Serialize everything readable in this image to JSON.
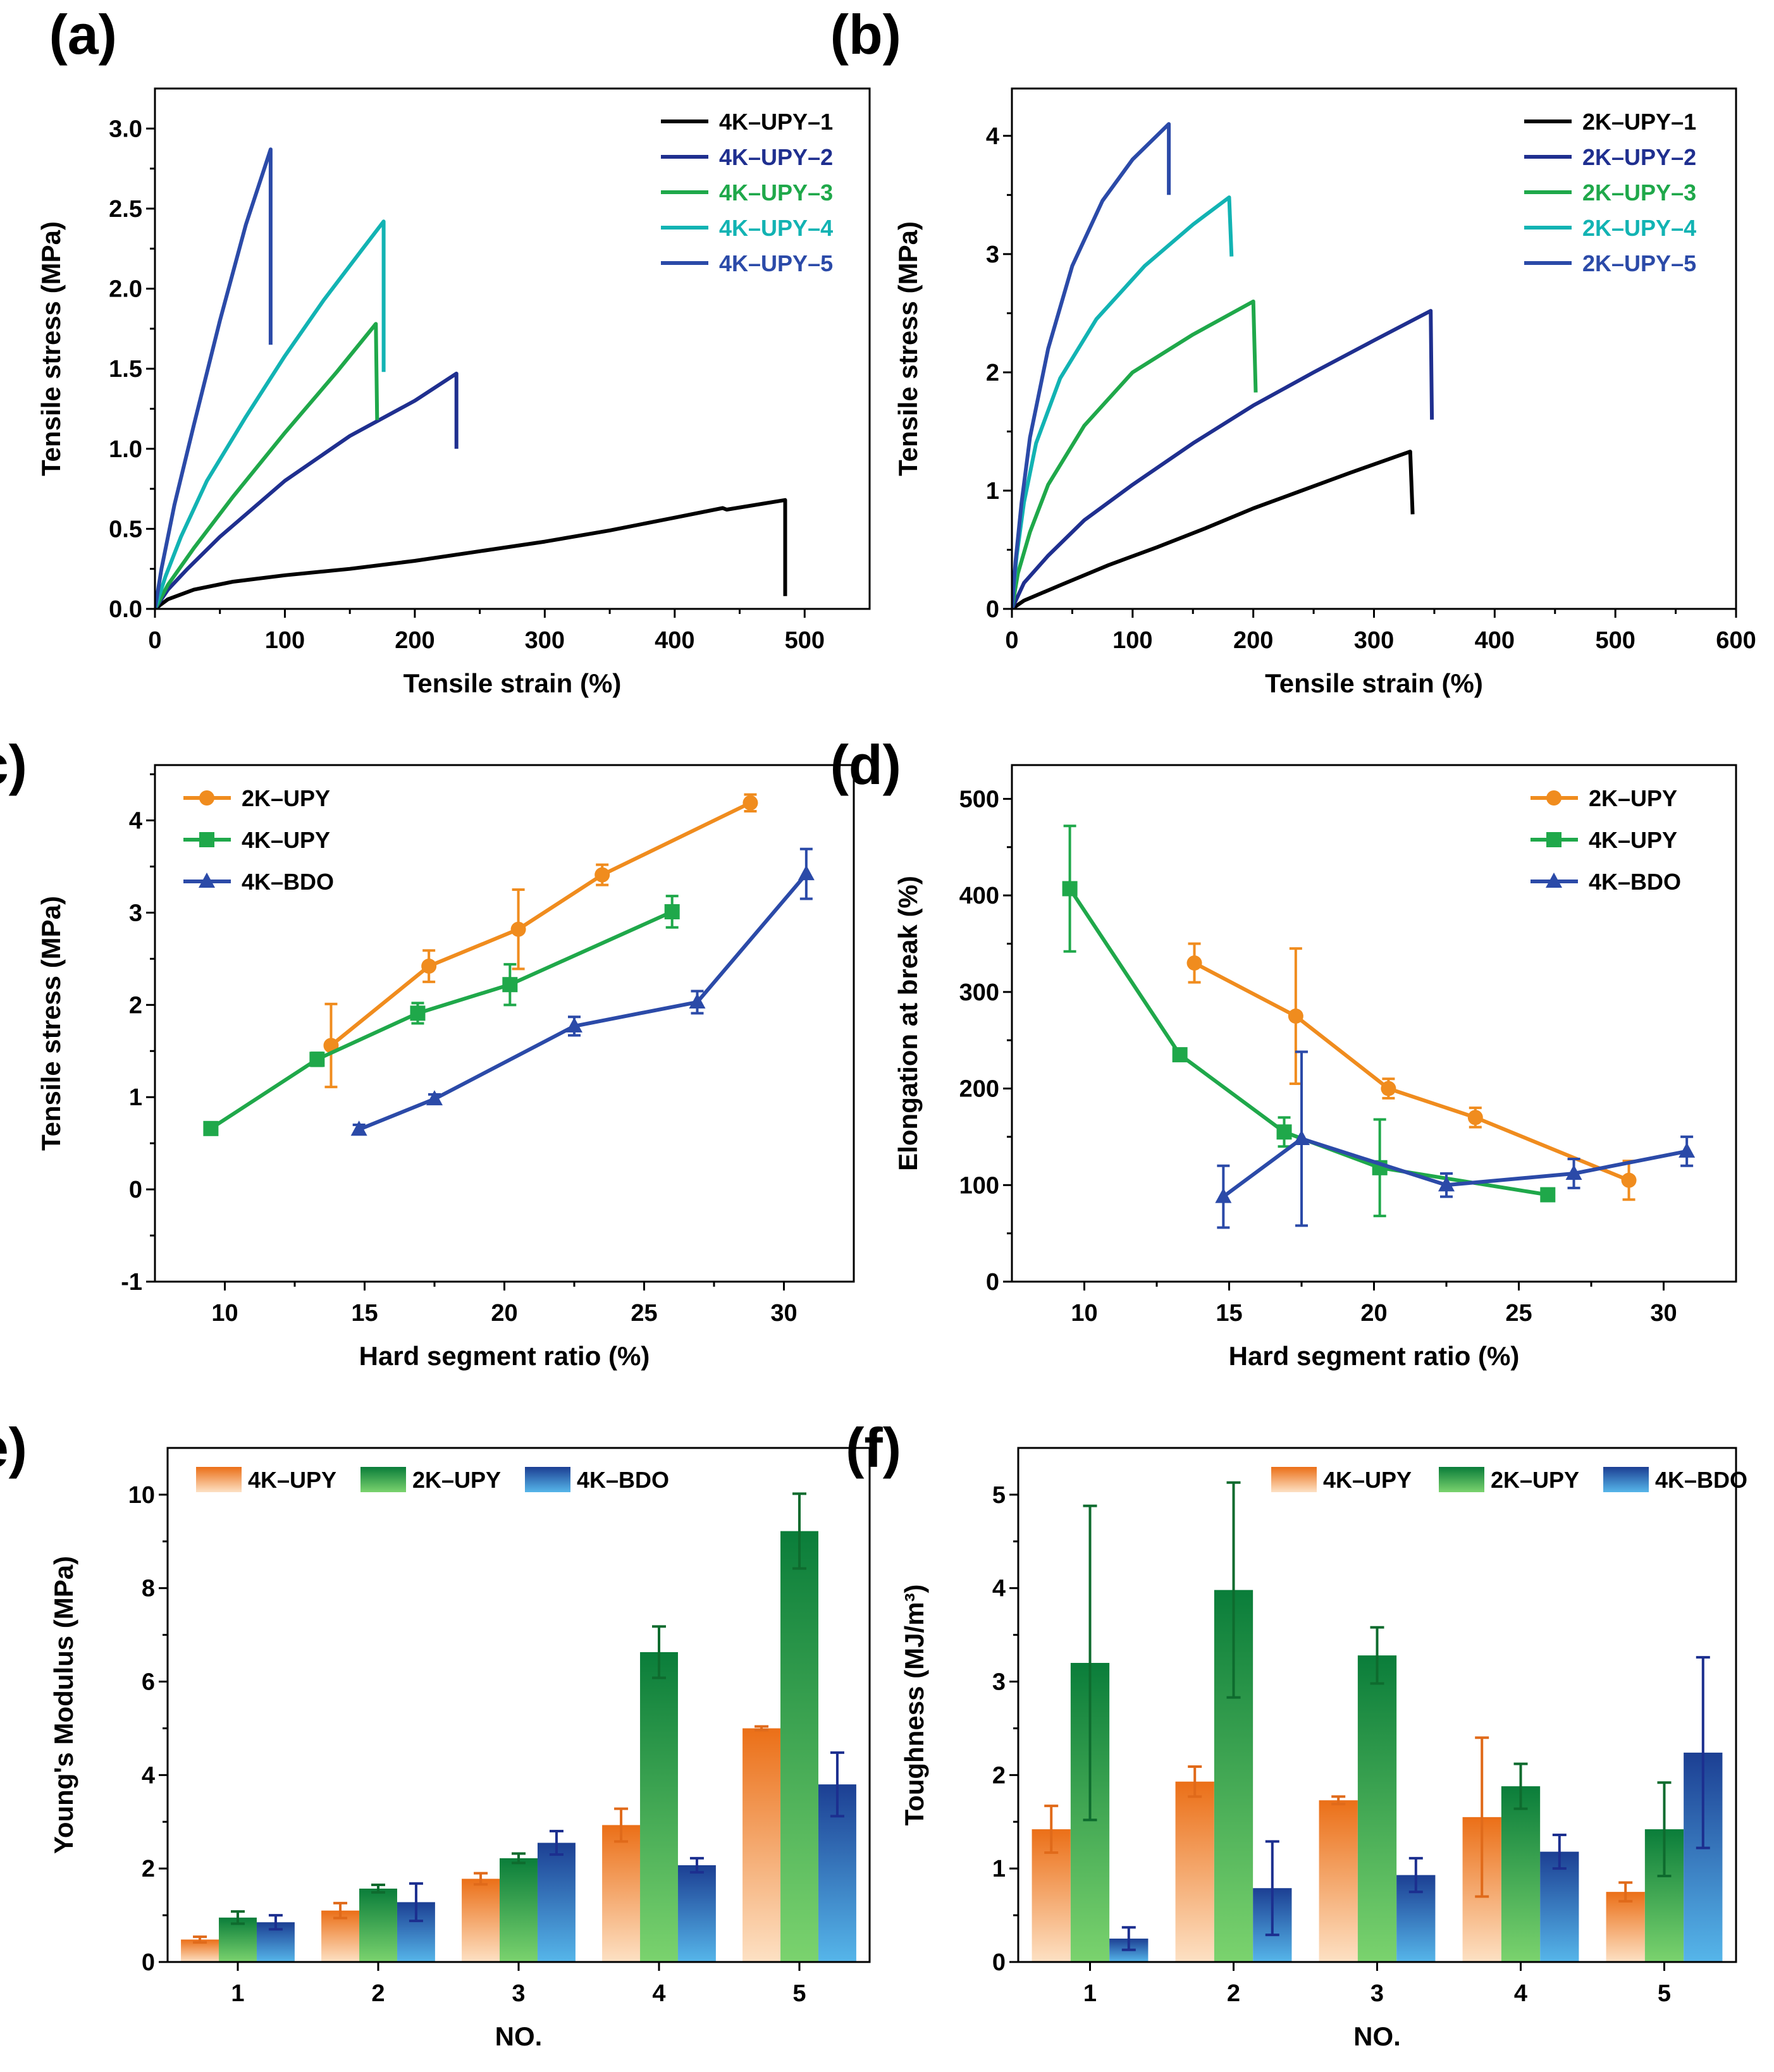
{
  "chart_data": [
    {
      "id": "a",
      "panel_label": "(a)",
      "type": "line",
      "xlabel": "Tensile strain (%)",
      "ylabel": "Tensile stress (MPa)",
      "xlim": [
        0,
        550
      ],
      "ylim": [
        0,
        3.25
      ],
      "xticks": [
        0,
        100,
        200,
        300,
        400,
        500
      ],
      "yticks": [
        0.0,
        0.5,
        1.0,
        1.5,
        2.0,
        2.5,
        3.0
      ],
      "ytick_labels": [
        "0.0",
        "0.5",
        "1.0",
        "1.5",
        "2.0",
        "2.5",
        "3.0"
      ],
      "legend": "top-right",
      "series": [
        {
          "name": "4K–UPY–1",
          "color": "#000000",
          "points": [
            [
              0,
              0
            ],
            [
              10,
              0.06
            ],
            [
              30,
              0.12
            ],
            [
              60,
              0.17
            ],
            [
              100,
              0.21
            ],
            [
              150,
              0.25
            ],
            [
              200,
              0.3
            ],
            [
              250,
              0.36
            ],
            [
              300,
              0.42
            ],
            [
              350,
              0.49
            ],
            [
              400,
              0.57
            ],
            [
              437,
              0.63
            ],
            [
              440,
              0.62
            ],
            [
              485,
              0.68
            ],
            [
              485,
              0.08
            ]
          ]
        },
        {
          "name": "4K–UPY–2",
          "color": "#1f2f8f",
          "points": [
            [
              0,
              0
            ],
            [
              10,
              0.12
            ],
            [
              25,
              0.25
            ],
            [
              50,
              0.45
            ],
            [
              100,
              0.8
            ],
            [
              150,
              1.08
            ],
            [
              200,
              1.3
            ],
            [
              232,
              1.47
            ],
            [
              232,
              1.0
            ]
          ]
        },
        {
          "name": "4K–UPY–3",
          "color": "#1fa84a",
          "points": [
            [
              0,
              0
            ],
            [
              10,
              0.15
            ],
            [
              30,
              0.38
            ],
            [
              60,
              0.7
            ],
            [
              100,
              1.1
            ],
            [
              140,
              1.48
            ],
            [
              170,
              1.78
            ],
            [
              171,
              1.18
            ]
          ]
        },
        {
          "name": "4K–UPY–4",
          "color": "#12b3b3",
          "points": [
            [
              0,
              0
            ],
            [
              8,
              0.2
            ],
            [
              20,
              0.45
            ],
            [
              40,
              0.8
            ],
            [
              70,
              1.2
            ],
            [
              100,
              1.58
            ],
            [
              130,
              1.93
            ],
            [
              160,
              2.25
            ],
            [
              176,
              2.42
            ],
            [
              176,
              1.48
            ]
          ]
        },
        {
          "name": "4K–UPY–5",
          "color": "#2b4aa8",
          "points": [
            [
              0,
              0
            ],
            [
              5,
              0.25
            ],
            [
              15,
              0.65
            ],
            [
              30,
              1.15
            ],
            [
              50,
              1.8
            ],
            [
              70,
              2.4
            ],
            [
              89,
              2.87
            ],
            [
              89,
              1.65
            ]
          ]
        }
      ]
    },
    {
      "id": "b",
      "panel_label": "(b)",
      "type": "line",
      "xlabel": "Tensile strain (%)",
      "ylabel": "Tensile stress (MPa)",
      "xlim": [
        0,
        600
      ],
      "ylim": [
        0,
        4.4
      ],
      "xticks": [
        0,
        100,
        200,
        300,
        400,
        500,
        600
      ],
      "yticks": [
        0,
        1,
        2,
        3,
        4
      ],
      "ytick_labels": [
        "0",
        "1",
        "2",
        "3",
        "4"
      ],
      "legend": "top-right",
      "series": [
        {
          "name": "2K–UPY–1",
          "color": "#000000",
          "points": [
            [
              0,
              0
            ],
            [
              10,
              0.07
            ],
            [
              40,
              0.2
            ],
            [
              80,
              0.37
            ],
            [
              120,
              0.52
            ],
            [
              160,
              0.68
            ],
            [
              200,
              0.85
            ],
            [
              240,
              1.0
            ],
            [
              280,
              1.15
            ],
            [
              330,
              1.33
            ],
            [
              332,
              0.8
            ]
          ]
        },
        {
          "name": "2K–UPY–2",
          "color": "#1f2f8f",
          "points": [
            [
              0,
              0
            ],
            [
              10,
              0.22
            ],
            [
              30,
              0.45
            ],
            [
              60,
              0.75
            ],
            [
              100,
              1.05
            ],
            [
              150,
              1.4
            ],
            [
              200,
              1.72
            ],
            [
              250,
              2.0
            ],
            [
              300,
              2.27
            ],
            [
              347,
              2.52
            ],
            [
              348,
              1.6
            ]
          ]
        },
        {
          "name": "2K–UPY–3",
          "color": "#1fa84a",
          "points": [
            [
              0,
              0
            ],
            [
              5,
              0.3
            ],
            [
              15,
              0.65
            ],
            [
              30,
              1.05
            ],
            [
              60,
              1.55
            ],
            [
              100,
              2.0
            ],
            [
              150,
              2.32
            ],
            [
              200,
              2.6
            ],
            [
              202,
              1.83
            ]
          ]
        },
        {
          "name": "2K–UPY–4",
          "color": "#12b3b3",
          "points": [
            [
              0,
              0
            ],
            [
              4,
              0.45
            ],
            [
              10,
              0.9
            ],
            [
              20,
              1.4
            ],
            [
              40,
              1.95
            ],
            [
              70,
              2.45
            ],
            [
              110,
              2.9
            ],
            [
              150,
              3.25
            ],
            [
              180,
              3.48
            ],
            [
              182,
              2.98
            ]
          ]
        },
        {
          "name": "2K–UPY–5",
          "color": "#2b4aa8",
          "points": [
            [
              0,
              0
            ],
            [
              3,
              0.4
            ],
            [
              8,
              0.9
            ],
            [
              15,
              1.45
            ],
            [
              30,
              2.2
            ],
            [
              50,
              2.9
            ],
            [
              75,
              3.45
            ],
            [
              100,
              3.8
            ],
            [
              130,
              4.1
            ],
            [
              130,
              3.5
            ]
          ]
        }
      ]
    },
    {
      "id": "c",
      "panel_label": "(c)",
      "type": "line",
      "xlabel": "Hard segment ratio (%)",
      "ylabel": "Tensile stress (MPa)",
      "xlim": [
        7.5,
        32.5
      ],
      "ylim": [
        -1,
        4.6
      ],
      "xticks": [
        10,
        15,
        20,
        25,
        30
      ],
      "yticks": [
        -1,
        0,
        1,
        2,
        3,
        4
      ],
      "ytick_labels": [
        "-1",
        "0",
        "1",
        "2",
        "3",
        "4"
      ],
      "legend": "top-left",
      "series": [
        {
          "name": "2K–UPY",
          "color": "#f08c1e",
          "marker": "circle",
          "x": [
            13.8,
            17.3,
            20.5,
            23.5,
            28.8
          ],
          "y": [
            1.56,
            2.42,
            2.82,
            3.41,
            4.19
          ],
          "err": [
            0.45,
            0.17,
            0.43,
            0.11,
            0.09
          ]
        },
        {
          "name": "4K–UPY",
          "color": "#1fa84a",
          "marker": "square",
          "x": [
            9.5,
            13.3,
            16.9,
            20.2,
            26.0
          ],
          "y": [
            0.66,
            1.41,
            1.91,
            2.22,
            3.01
          ],
          "err": [
            0.06,
            0.07,
            0.11,
            0.22,
            0.17
          ]
        },
        {
          "name": "4K–BDO",
          "color": "#2b4aa8",
          "marker": "triangle",
          "x": [
            14.8,
            17.5,
            22.5,
            26.9,
            30.8
          ],
          "y": [
            0.65,
            0.98,
            1.77,
            2.03,
            3.42
          ],
          "err": [
            0.05,
            0.05,
            0.1,
            0.12,
            0.27
          ]
        }
      ]
    },
    {
      "id": "d",
      "panel_label": "(d)",
      "type": "line",
      "xlabel": "Hard segment ratio (%)",
      "ylabel": "Elongation at break (%)",
      "xlim": [
        7.5,
        32.5
      ],
      "ylim": [
        0,
        535
      ],
      "xticks": [
        10,
        15,
        20,
        25,
        30
      ],
      "yticks": [
        0,
        100,
        200,
        300,
        400,
        500
      ],
      "ytick_labels": [
        "0",
        "100",
        "200",
        "300",
        "400",
        "500"
      ],
      "legend": "top-right",
      "series": [
        {
          "name": "2K–UPY",
          "color": "#f08c1e",
          "marker": "circle",
          "x": [
            13.8,
            17.3,
            20.5,
            23.5,
            28.8
          ],
          "y": [
            330,
            275,
            200,
            170,
            105
          ],
          "err": [
            20,
            70,
            10,
            10,
            20
          ]
        },
        {
          "name": "4K–UPY",
          "color": "#1fa84a",
          "marker": "square",
          "x": [
            9.5,
            13.3,
            16.9,
            20.2,
            26.0
          ],
          "y": [
            407,
            235,
            155,
            118,
            90
          ],
          "err": [
            65,
            5,
            15,
            50,
            5
          ]
        },
        {
          "name": "4K–BDO",
          "color": "#2b4aa8",
          "marker": "triangle",
          "x": [
            14.8,
            17.5,
            22.5,
            26.9,
            30.8
          ],
          "y": [
            88,
            148,
            100,
            112,
            135
          ],
          "err": [
            32,
            90,
            12,
            15,
            15
          ]
        }
      ]
    },
    {
      "id": "e",
      "panel_label": "(e)",
      "type": "bar",
      "xlabel": "NO.",
      "ylabel": "Young's Modulus (MPa)",
      "categories": [
        "1",
        "2",
        "3",
        "4",
        "5"
      ],
      "ylim": [
        0,
        11
      ],
      "yticks": [
        0,
        2,
        4,
        6,
        8,
        10
      ],
      "ytick_labels": [
        "0",
        "2",
        "4",
        "6",
        "8",
        "10"
      ],
      "legend": "top-left",
      "series": [
        {
          "name": "4K–UPY",
          "color": "#f08c1e",
          "light": "#fde1c4",
          "dark": "#eb6f17",
          "errcolor": "#e06a1a",
          "values": [
            0.48,
            1.1,
            1.78,
            2.93,
            5.0
          ],
          "err": [
            0.06,
            0.16,
            0.12,
            0.35,
            0.04
          ]
        },
        {
          "name": "2K–UPY",
          "color": "#1fa84a",
          "light": "#7bd36e",
          "dark": "#0a7d3a",
          "errcolor": "#0e6b2e",
          "values": [
            0.95,
            1.57,
            2.22,
            6.63,
            9.22
          ],
          "err": [
            0.13,
            0.08,
            0.1,
            0.55,
            0.8
          ]
        },
        {
          "name": "4K–BDO",
          "color": "#2b6cc0",
          "light": "#56b6ea",
          "dark": "#1c3f93",
          "errcolor": "#1c2f8f",
          "values": [
            0.85,
            1.28,
            2.55,
            2.07,
            3.8
          ],
          "err": [
            0.15,
            0.4,
            0.25,
            0.15,
            0.68
          ]
        }
      ]
    },
    {
      "id": "f",
      "panel_label": "(f)",
      "type": "bar",
      "xlabel": "NO.",
      "ylabel": "Toughness (MJ/m³)",
      "categories": [
        "1",
        "2",
        "3",
        "4",
        "5"
      ],
      "ylim": [
        0,
        5.5
      ],
      "yticks": [
        0,
        1,
        2,
        3,
        4,
        5
      ],
      "ytick_labels": [
        "0",
        "1",
        "2",
        "3",
        "4",
        "5"
      ],
      "legend": "top-right",
      "series": [
        {
          "name": "4K–UPY",
          "color": "#f08c1e",
          "light": "#fde1c4",
          "dark": "#eb6f17",
          "errcolor": "#e06a1a",
          "values": [
            1.42,
            1.93,
            1.73,
            1.55,
            0.75
          ],
          "err": [
            0.25,
            0.16,
            0.04,
            0.85,
            0.1
          ]
        },
        {
          "name": "2K–UPY",
          "color": "#1fa84a",
          "light": "#7bd36e",
          "dark": "#0a7d3a",
          "errcolor": "#0e6b2e",
          "values": [
            3.2,
            3.98,
            3.28,
            1.88,
            1.42
          ],
          "err": [
            1.68,
            1.15,
            0.3,
            0.24,
            0.5
          ]
        },
        {
          "name": "4K–BDO",
          "color": "#2b6cc0",
          "light": "#56b6ea",
          "dark": "#1c3f93",
          "errcolor": "#1c2f8f",
          "values": [
            0.25,
            0.79,
            0.93,
            1.18,
            2.24
          ],
          "err": [
            0.12,
            0.5,
            0.18,
            0.18,
            1.02
          ]
        }
      ]
    }
  ]
}
